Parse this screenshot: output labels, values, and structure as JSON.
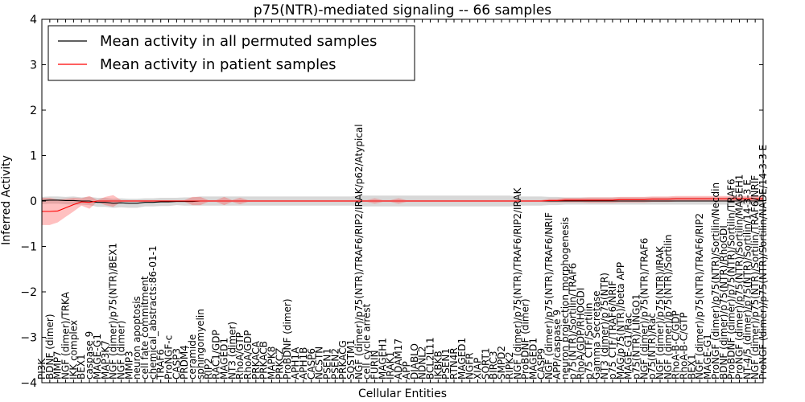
{
  "chart_data": {
    "type": "line",
    "title": "p75(NTR)-mediated signaling -- 66 samples",
    "xlabel": "Cellular Entities",
    "ylabel": "Inferred Activity",
    "ylim": [
      -4,
      4
    ],
    "yticks": [
      -4,
      -3,
      -2,
      -1,
      0,
      1,
      2,
      3,
      4
    ],
    "grid": false,
    "legend_position": "top-left",
    "legend": [
      {
        "label": "Mean activity in all permuted samples",
        "color": "#000000"
      },
      {
        "label": "Mean activity in patient samples",
        "color": "#ff0000"
      }
    ],
    "categories": [
      "PI3K",
      "BDNF (dimer)",
      "MMP7",
      "NGF (dimer)/TRKA",
      "IKK complex",
      "BEX1",
      "caspase 9",
      "MAGE-G1",
      "MAP3K7",
      "NGF (dimer)/p75(NTR)/BEX1",
      "NGF (dimer)",
      "MMP3",
      "neuron apoptosis",
      "cell fate commitment",
      "chemical_abstracts:86-01-1",
      "TRAF6",
      "ProNGF-c",
      "CASP3",
      "PRDM4",
      "ceramide",
      "sphingomyelin",
      "RIP2",
      "RAC1/GDP",
      "MAGED1",
      "NT3 (dimer)",
      "RhoA/GTP",
      "RhoA/GDP",
      "PRKACA",
      "PRKACB",
      "MAPK8",
      "PRKCZ",
      "ProBDNF (dimer)",
      "APH1A",
      "APH1B",
      "CASP6",
      "NCSTN",
      "PSEN1",
      "PSEN2",
      "PRKACG",
      "SQSTM1",
      "NGF (dimer)/p75(NTR)/TRAF6/RIP2/IRAK/p62/Atypical",
      "cell cycle arrest",
      "FURIN",
      "MAGEH1",
      "IRAK1",
      "ADAM17",
      "APP",
      "DIABLO",
      "NDNL2",
      "BCL2L11",
      "IKBKB",
      "PSEN1",
      "RTN4R",
      "MAGED1",
      "NGFR",
      "XIAP",
      "SORT1",
      "BIRC3",
      "SMPD2",
      "RIPK2",
      "NGF (dimer)/p75(NTR)/TRAF6/RIP2/IRAK",
      "ProBDNF (dimer)",
      "MAGED1",
      "CASP9",
      "NGF (dimer)/p75(NTR)/TRAF6/NRIF",
      "APP/caspase 9",
      "neuron projection morphogenesis",
      "p75(NTR)/Sortilin/TRAF6",
      "RhoA/GDP/RHOGDI",
      "p75 CTF/Sortilin",
      "Gamma Secretase",
      "NT3 (dimer)/p75(NTR)",
      "p75 CTF/TRAF6/NRIF",
      "MAG/p75(NTR)/beta APP",
      "MAGE-G1/Rac",
      "p75(NTR)/LINGO1",
      "NGF (dimer)/p75(NTR)/TRAF6",
      "p75(NTR)/Rac",
      "NGF (dimer)/p75(NTR)/IRAK",
      "NGF (dimer)/p75(NTR)/Sortilin",
      "RhoA-B-C/GDP",
      "RhoA-B-C/GTP",
      "BEX1",
      "NGF (dimer)/p75(NTR)/TRAF6/RIP2",
      "MAGE-G1",
      "ProNGF (dimer)/p75(NTR)/Sortilin/Necdin",
      "BDNF (dimer)/p75(NTR)/RhoGDI",
      "ProBDNF (dimer)/p75(NTR)/Sortilin/TRAF6",
      "ProNGF (dimer)/p75(NTR)/Sortilin/MAGEH1",
      "NT-4/5 (dimer)/p75(NTR)/Sortilin/14-3-3 E",
      "NGF (dimer)/p75(NTR)/Sortilin/TRAF6/NRIF",
      "ProNGF (dimer)/p75(NTR)/Sortilin/NADE/14-3-3 E"
    ],
    "series": [
      {
        "name": "Mean activity in all permuted samples",
        "color": "#000000",
        "values": [
          0.01,
          0.02,
          0.02,
          0.01,
          0.01,
          0.0,
          0.0,
          -0.03,
          -0.03,
          -0.05,
          -0.04,
          -0.05,
          -0.05,
          -0.03,
          -0.03,
          -0.02,
          -0.02,
          -0.01,
          -0.01,
          -0.01,
          0.0,
          0.0,
          0.0,
          0.0,
          0.0,
          0.0,
          0.0,
          0.0,
          0.0,
          0.0,
          0.0,
          0.0,
          0.0,
          0.0,
          0.0,
          0.0,
          0.0,
          0.0,
          0.0,
          0.0,
          0.0,
          0.0,
          0.0,
          0.0,
          0.0,
          0.0,
          0.0,
          0.0,
          0.0,
          0.0,
          0.0,
          0.0,
          0.0,
          0.0,
          0.0,
          0.0,
          0.0,
          0.0,
          0.0,
          0.0,
          0.0,
          0.0,
          0.0,
          0.0,
          0.0,
          0.0,
          0.0,
          0.0,
          0.0,
          0.0,
          0.0,
          0.0,
          0.0,
          0.0,
          0.0,
          0.0,
          0.0,
          0.0,
          0.0,
          0.0,
          0.0,
          0.0,
          0.0,
          0.0,
          0.0,
          0.0,
          0.0,
          0.0,
          0.0,
          0.0,
          0.0,
          0.0
        ],
        "band": [
          0.08,
          0.08,
          0.08,
          0.08,
          0.09,
          0.08,
          0.09,
          0.1,
          0.1,
          0.1,
          0.1,
          0.1,
          0.1,
          0.09,
          0.09,
          0.09,
          0.09,
          0.08,
          0.09,
          0.09,
          0.1,
          0.1,
          0.1,
          0.1,
          0.1,
          0.1,
          0.1,
          0.1,
          0.1,
          0.1,
          0.1,
          0.1,
          0.1,
          0.1,
          0.1,
          0.1,
          0.1,
          0.1,
          0.1,
          0.1,
          0.12,
          0.12,
          0.12,
          0.12,
          0.12,
          0.12,
          0.12,
          0.12,
          0.12,
          0.12,
          0.12,
          0.12,
          0.12,
          0.12,
          0.12,
          0.12,
          0.12,
          0.12,
          0.12,
          0.12,
          0.1,
          0.1,
          0.1,
          0.1,
          0.09,
          0.09,
          0.08,
          0.08,
          0.08,
          0.08,
          0.08,
          0.08,
          0.08,
          0.08,
          0.08,
          0.08,
          0.08,
          0.08,
          0.08,
          0.08,
          0.08,
          0.08,
          0.08,
          0.08,
          0.08,
          0.08,
          0.08,
          0.08,
          0.08,
          0.08,
          0.08,
          0.08
        ]
      },
      {
        "name": "Mean activity in patient samples",
        "color": "#ff0000",
        "values": [
          -0.23,
          -0.23,
          -0.22,
          -0.15,
          -0.08,
          -0.02,
          -0.03,
          0.0,
          0.0,
          0.0,
          0.0,
          0.0,
          0.0,
          0.0,
          0.0,
          0.0,
          0.0,
          0.0,
          0.0,
          0.0,
          0.0,
          0.0,
          0.0,
          0.0,
          0.0,
          0.0,
          0.0,
          0.0,
          0.0,
          0.0,
          0.0,
          0.0,
          0.0,
          0.0,
          0.0,
          0.0,
          0.0,
          0.0,
          0.0,
          0.0,
          0.0,
          0.0,
          0.0,
          0.0,
          0.0,
          0.0,
          0.0,
          0.0,
          0.0,
          0.0,
          0.0,
          0.0,
          0.0,
          0.0,
          0.0,
          0.0,
          0.0,
          0.0,
          0.0,
          0.0,
          0.0,
          0.0,
          0.0,
          0.0,
          0.01,
          0.01,
          0.02,
          0.02,
          0.02,
          0.02,
          0.02,
          0.02,
          0.02,
          0.03,
          0.03,
          0.03,
          0.03,
          0.04,
          0.04,
          0.04,
          0.05,
          0.05,
          0.05,
          0.05,
          0.05,
          0.05,
          0.05,
          0.05,
          0.05,
          0.05,
          0.05,
          0.05
        ],
        "band": [
          0.3,
          0.3,
          0.25,
          0.2,
          0.15,
          0.08,
          0.14,
          0.02,
          0.09,
          0.13,
          0.02,
          0.02,
          0.02,
          0.02,
          0.02,
          0.02,
          0.02,
          0.02,
          0.02,
          0.09,
          0.09,
          0.02,
          0.02,
          0.09,
          0.02,
          0.07,
          0.02,
          0.02,
          0.02,
          0.02,
          0.02,
          0.02,
          0.02,
          0.02,
          0.02,
          0.02,
          0.02,
          0.02,
          0.02,
          0.02,
          0.02,
          0.02,
          0.06,
          0.02,
          0.02,
          0.06,
          0.02,
          0.02,
          0.02,
          0.02,
          0.02,
          0.02,
          0.02,
          0.02,
          0.02,
          0.02,
          0.02,
          0.02,
          0.02,
          0.02,
          0.02,
          0.02,
          0.02,
          0.02,
          0.04,
          0.04,
          0.05,
          0.05,
          0.05,
          0.06,
          0.06,
          0.06,
          0.06,
          0.06,
          0.06,
          0.06,
          0.06,
          0.06,
          0.06,
          0.06,
          0.06,
          0.06,
          0.06,
          0.06,
          0.06,
          0.06,
          0.06,
          0.06,
          0.06,
          0.06,
          0.06,
          0.06
        ]
      }
    ]
  }
}
